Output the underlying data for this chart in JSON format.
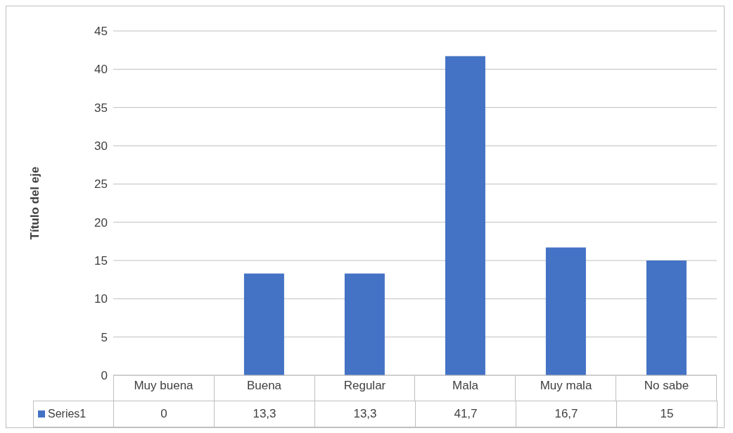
{
  "chart_data": {
    "type": "bar",
    "ylabel": "Título del eje",
    "categories": [
      "Muy buena",
      "Buena",
      "Regular",
      "Mala",
      "Muy mala",
      "No sabe"
    ],
    "series": [
      {
        "name": "Series1",
        "color": "#4472c4",
        "values": [
          0,
          13.3,
          13.3,
          41.7,
          16.7,
          15
        ],
        "value_labels": [
          "0",
          "13,3",
          "13,3",
          "41,7",
          "16,7",
          "15"
        ]
      }
    ],
    "ylim": [
      0,
      45
    ],
    "yticks": [
      0,
      5,
      10,
      15,
      20,
      25,
      30,
      35,
      40,
      45
    ],
    "grid": "y"
  }
}
